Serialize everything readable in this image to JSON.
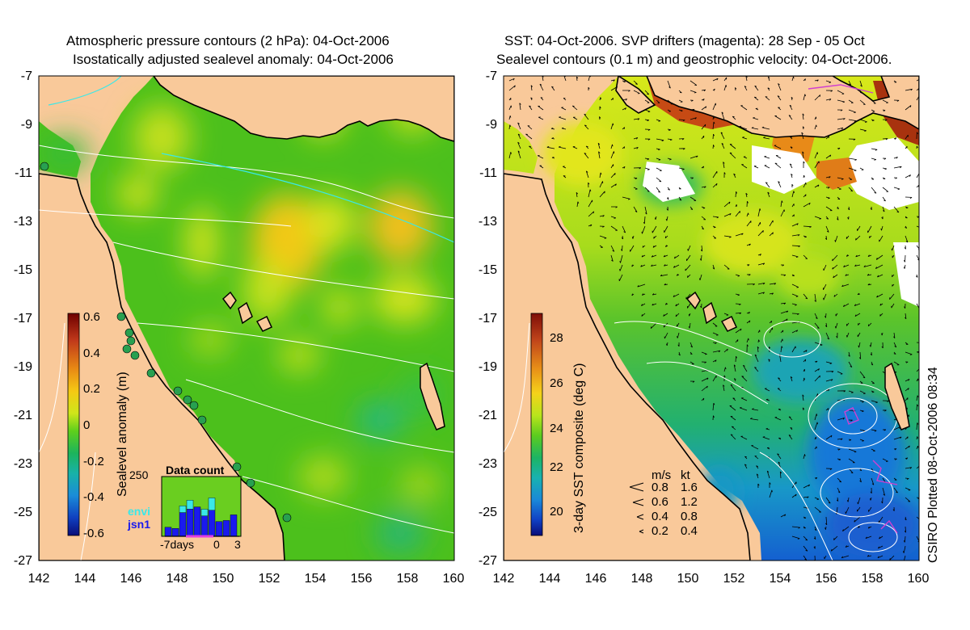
{
  "left_panel": {
    "title_line1": "Atmospheric pressure contours (2 hPa): 04-Oct-2006",
    "title_line2": "Isostatically adjusted sealevel anomaly: 04-Oct-2006",
    "colorbar": {
      "label": "Sealevel anomaly (m)",
      "ticks": [
        "0.6",
        "0.4",
        "0.2",
        "0",
        "-0.2",
        "-0.4",
        "-0.6"
      ],
      "colors": [
        "#7a0000",
        "#c0381a",
        "#e57e14",
        "#f5c214",
        "#d8e81a",
        "#66d21c",
        "#1cb45a",
        "#18b0a0",
        "#1a8cd4",
        "#1048c8",
        "#0a1484"
      ]
    },
    "inset": {
      "title": "Data count",
      "count_max": "250",
      "series": [
        {
          "name": "envi",
          "color": "#3ae8e8"
        },
        {
          "name": "jsn1",
          "color": "#1a1aee"
        }
      ],
      "x_label_left": "-7days",
      "x_label_mid": "0",
      "x_label_right": "3",
      "bars": [
        {
          "day": -7,
          "jsn1": 40,
          "envi": 0
        },
        {
          "day": -6,
          "jsn1": 35,
          "envi": 0
        },
        {
          "day": -5,
          "jsn1": 105,
          "envi": 30
        },
        {
          "day": -4,
          "jsn1": 120,
          "envi": 40
        },
        {
          "day": -3,
          "jsn1": 130,
          "envi": 0
        },
        {
          "day": -2,
          "jsn1": 90,
          "envi": 30
        },
        {
          "day": -1,
          "jsn1": 115,
          "envi": 55
        },
        {
          "day": 0,
          "jsn1": 65,
          "envi": 0
        },
        {
          "day": 1,
          "jsn1": 70,
          "envi": 0
        },
        {
          "day": 2,
          "jsn1": 95,
          "envi": 0
        }
      ]
    },
    "land_color": "#f9c99a",
    "sea_base_color": "#4cc01c"
  },
  "right_panel": {
    "title_line1": "SST: 04-Oct-2006. SVP drifters (magenta): 28 Sep - 05 Oct",
    "title_line2": "Sealevel contours (0.1 m) and geostrophic velocity: 04-Oct-2006.",
    "colorbar": {
      "label": "3-day SST composite (deg C)",
      "ticks": [
        "28",
        "26",
        "24",
        "22",
        "20"
      ],
      "colors": [
        "#8c1a0a",
        "#c44a14",
        "#e88a18",
        "#f5d21a",
        "#c8e81c",
        "#6ad21c",
        "#1cb45a",
        "#18b0a8",
        "#1a8cd8",
        "#1048c8",
        "#0a1484"
      ]
    },
    "velocity_legend": {
      "header_ms": "m/s",
      "header_kt": "kt",
      "rows": [
        {
          "ms": "0.8",
          "kt": "1.6"
        },
        {
          "ms": "0.6",
          "kt": "1.2"
        },
        {
          "ms": "0.4",
          "kt": "0.8"
        },
        {
          "ms": "0.2",
          "kt": "0.4"
        }
      ]
    },
    "land_color": "#f9c99a"
  },
  "axes": {
    "y_ticks": [
      "-7",
      "-9",
      "-11",
      "-13",
      "-15",
      "-17",
      "-19",
      "-21",
      "-23",
      "-25",
      "-27"
    ],
    "x_ticks": [
      "142",
      "144",
      "146",
      "148",
      "150",
      "152",
      "154",
      "156",
      "158",
      "160"
    ],
    "lat_range": [
      -27,
      -7
    ],
    "lon_range": [
      142,
      160
    ]
  },
  "side_note": "CSIRO Plotted 08-Oct-2006 08:34"
}
